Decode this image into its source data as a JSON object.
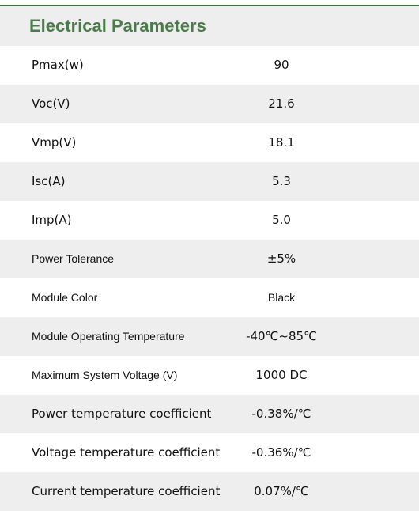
{
  "header": {
    "title": "Electrical Parameters"
  },
  "table": {
    "rows": [
      [
        "Pmax(w)",
        "90"
      ],
      [
        "Voc(V)",
        "21.6"
      ],
      [
        "Vmp(V)",
        "18.1"
      ],
      [
        "Isc(A)",
        "5.3"
      ],
      [
        "Imp(A)",
        "5.0"
      ],
      [
        "Power Tolerance",
        "±5%"
      ],
      [
        "Module Color",
        "Black"
      ],
      [
        "Module Operating Temperature",
        "-40℃~85℃"
      ],
      [
        "Maximum System Voltage (V)",
        "1000 DC"
      ],
      [
        "Power temperature coefficient",
        "-0.38%/℃"
      ],
      [
        "Voltage temperature coefficient",
        "-0.36%/℃"
      ],
      [
        "Current temperature coefficient",
        "0.07%/℃"
      ]
    ]
  }
}
